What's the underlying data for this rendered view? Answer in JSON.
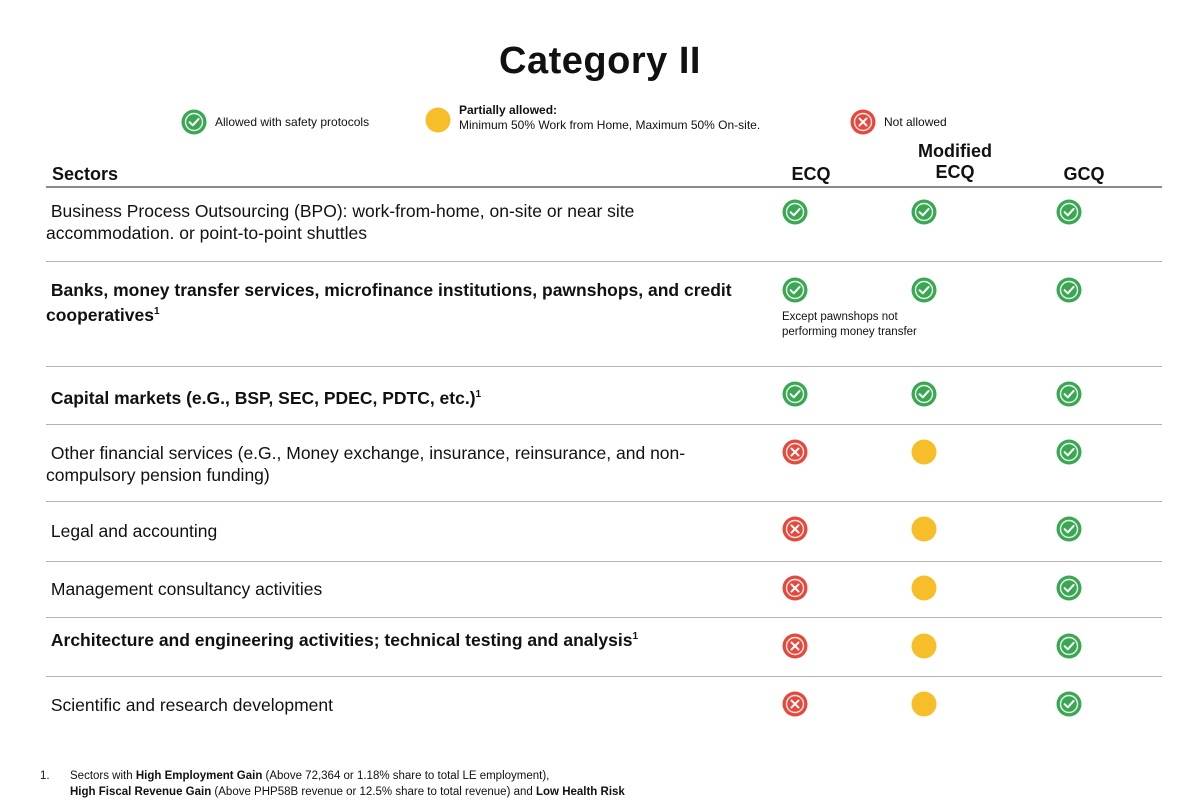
{
  "title": "Category II",
  "legend": {
    "allowed": "Allowed with safety protocols",
    "partial_title": "Partially allowed:",
    "partial_text": "Minimum 50% Work from Home,  Maximum 50% On-site.",
    "not_allowed": "Not allowed"
  },
  "columns": {
    "sectors": "Sectors",
    "ecq": "ECQ",
    "mecq_line1": "Modified",
    "mecq_line2": "ECQ",
    "gcq": "GCQ"
  },
  "status_colors": {
    "allowed": "#3aa853",
    "partial": "#f6bf2a",
    "not_allowed": "#e8473b"
  },
  "rows": [
    {
      "label": "Business Process Outsourcing (BPO): work-from-home, on-site or near site accommodation. or point-to-point shuttles",
      "sup": "",
      "bold": false,
      "ecq": "allowed",
      "mecq": "allowed",
      "gcq": "allowed"
    },
    {
      "label": "Banks, money transfer services, microfinance institutions, pawnshops, and credit cooperatives",
      "sup": "1",
      "bold": true,
      "ecq": "allowed",
      "mecq": "allowed",
      "gcq": "allowed",
      "ecq_note": "Except pawnshops not performing money transfer"
    },
    {
      "label": "Capital markets (e.G., BSP, SEC, PDEC, PDTC, etc.)",
      "sup": "1",
      "bold": true,
      "ecq": "allowed",
      "mecq": "allowed",
      "gcq": "allowed"
    },
    {
      "label": "Other financial services (e.G., Money exchange, insurance, reinsurance, and non-compulsory pension funding)",
      "sup": "",
      "bold": false,
      "ecq": "not_allowed",
      "mecq": "partial",
      "gcq": "allowed"
    },
    {
      "label": "Legal and accounting",
      "sup": "",
      "bold": false,
      "ecq": "not_allowed",
      "mecq": "partial",
      "gcq": "allowed"
    },
    {
      "label": "Management consultancy activities",
      "sup": "",
      "bold": false,
      "ecq": "not_allowed",
      "mecq": "partial",
      "gcq": "allowed"
    },
    {
      "label": "Architecture and engineering activities; technical testing and analysis",
      "sup": "1",
      "bold": true,
      "ecq": "not_allowed",
      "mecq": "partial",
      "gcq": "allowed"
    },
    {
      "label": "Scientific and research development",
      "sup": "",
      "bold": false,
      "ecq": "not_allowed",
      "mecq": "partial",
      "gcq": "allowed"
    }
  ],
  "footnote": {
    "number": "1.",
    "line1_a": "Sectors with ",
    "line1_b": "High Employment Gain",
    "line1_c": " (Above 72,364 or 1.18% share to total LE employment),",
    "line2_a": "High Fiscal Revenue Gain",
    "line2_b": " (Above PHP58B revenue or 12.5% share to total revenue) and  ",
    "line2_c": "Low Health Risk"
  }
}
